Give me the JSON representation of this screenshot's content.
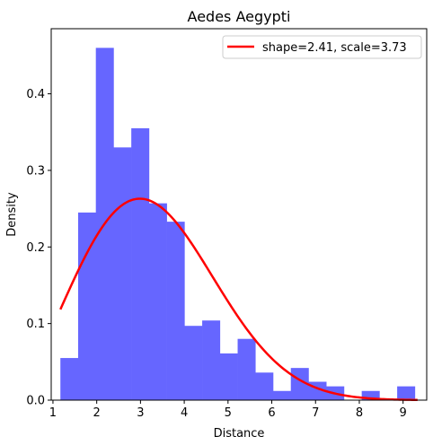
{
  "chart_data": {
    "type": "bar",
    "title": "Aedes Aegypti",
    "xlabel": "Distance",
    "ylabel": "Density",
    "xlim": [
      0.96,
      9.54
    ],
    "ylim": [
      0,
      0.485
    ],
    "xticks": [
      1,
      2,
      3,
      4,
      5,
      6,
      7,
      8,
      9
    ],
    "yticks": [
      0.0,
      0.1,
      0.2,
      0.3,
      0.4
    ],
    "ytick_labels": [
      "0.0",
      "0.1",
      "0.2",
      "0.3",
      "0.4"
    ],
    "grid": false,
    "legend_position": "top-right",
    "bar_color": "#6666ff",
    "histogram": {
      "bin_edges": [
        1.17,
        1.575,
        1.98,
        2.385,
        2.79,
        3.195,
        3.6,
        4.005,
        4.41,
        4.815,
        5.22,
        5.625,
        6.03,
        6.435,
        6.84,
        7.245,
        7.65,
        8.055,
        8.46,
        8.865,
        9.27
      ],
      "density": [
        0.055,
        0.245,
        0.46,
        0.33,
        0.355,
        0.257,
        0.233,
        0.097,
        0.104,
        0.061,
        0.08,
        0.036,
        0.012,
        0.042,
        0.024,
        0.018,
        0.0,
        0.012,
        0.0,
        0.018
      ]
    },
    "series": [
      {
        "name": "shape=2.41, scale=3.73",
        "type": "line",
        "distribution": "weibull",
        "shape": 2.41,
        "scale": 3.73,
        "x_range": [
          1.17,
          9.33
        ],
        "color": "#ff0000"
      }
    ]
  }
}
